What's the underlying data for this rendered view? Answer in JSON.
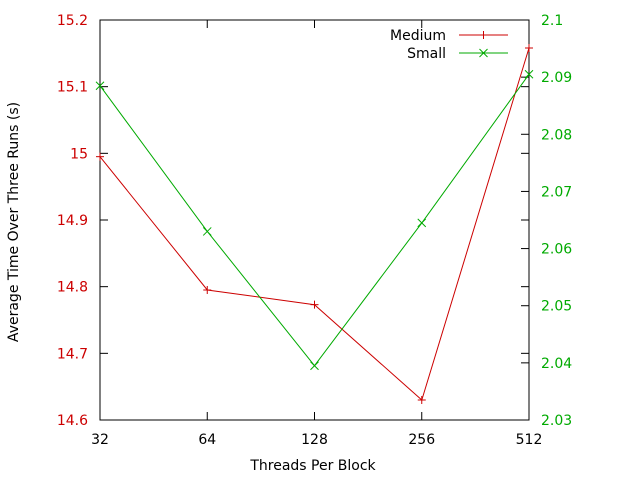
{
  "chart_data": {
    "type": "line",
    "xlabel": "Threads Per Block",
    "ylabel": "Average Time Over Three Runs (s)",
    "categories": [
      "32",
      "64",
      "128",
      "256",
      "512"
    ],
    "x": [
      32,
      64,
      128,
      256,
      512
    ],
    "x_scale": "log2",
    "grid": false,
    "legend_position": "top-right",
    "y_left": {
      "range": [
        14.6,
        15.2
      ],
      "ticks": [
        14.6,
        14.7,
        14.8,
        14.9,
        15,
        15.1,
        15.2
      ],
      "tick_color": "#cc0000"
    },
    "y_right": {
      "range": [
        2.03,
        2.1
      ],
      "ticks": [
        2.03,
        2.04,
        2.05,
        2.06,
        2.07,
        2.08,
        2.09,
        2.1
      ],
      "tick_color": "#00aa00"
    },
    "series": [
      {
        "name": "Medium",
        "axis": "left",
        "color": "#cc0000",
        "marker": "plus",
        "values": [
          14.995,
          14.795,
          14.773,
          14.63,
          15.158
        ]
      },
      {
        "name": "Small",
        "axis": "right",
        "color": "#00aa00",
        "marker": "cross",
        "values": [
          2.0885,
          2.063,
          2.0395,
          2.0645,
          2.0905
        ]
      }
    ]
  }
}
